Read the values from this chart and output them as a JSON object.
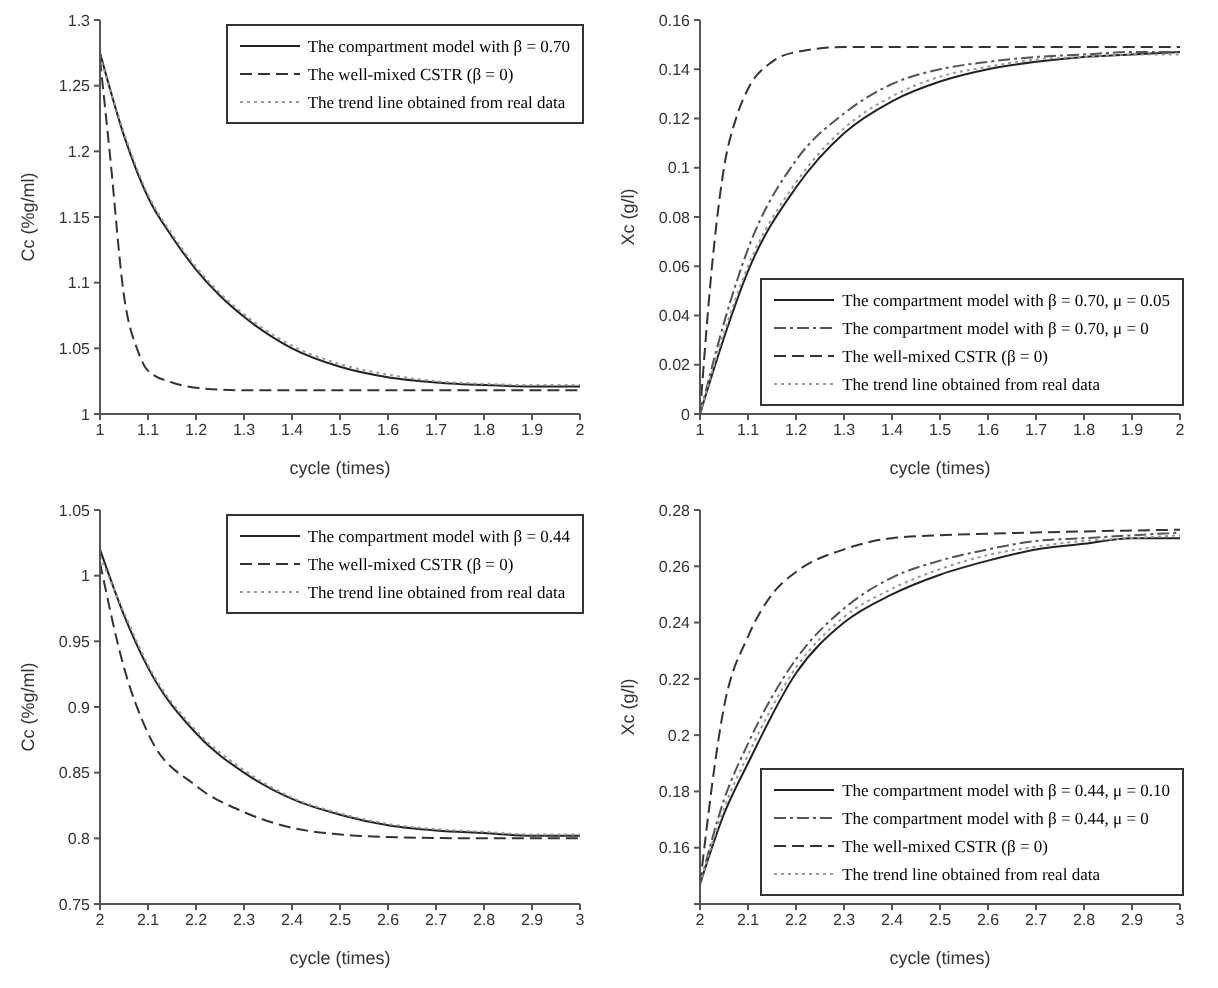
{
  "chart_data": [
    {
      "type": "line",
      "xlabel": "cycle (times)",
      "ylabel": "Cc (%g/ml)",
      "xlim": [
        1,
        2
      ],
      "ylim": [
        1,
        1.3
      ],
      "xticks": [
        1,
        1.1,
        1.2,
        1.3,
        1.4,
        1.5,
        1.6,
        1.7,
        1.8,
        1.9,
        2
      ],
      "yticks": [
        1,
        1.05,
        1.1,
        1.15,
        1.2,
        1.25,
        1.3
      ],
      "legend": "top right",
      "series": [
        {
          "name": "The compartment model with β = 0.70",
          "color": "#222222",
          "line_style": "solid",
          "x": [
            1,
            1.05,
            1.1,
            1.15,
            1.2,
            1.25,
            1.3,
            1.4,
            1.5,
            1.6,
            1.7,
            1.8,
            1.9,
            2
          ],
          "values": [
            1.275,
            1.212,
            1.165,
            1.135,
            1.11,
            1.09,
            1.074,
            1.05,
            1.036,
            1.028,
            1.024,
            1.022,
            1.021,
            1.021
          ]
        },
        {
          "name": "The well-mixed CSTR (β = 0)",
          "color": "#333333",
          "line_style": "dashed",
          "x": [
            1,
            1.02,
            1.05,
            1.08,
            1.1,
            1.15,
            1.2,
            1.3,
            1.5,
            2
          ],
          "values": [
            1.27,
            1.2,
            1.09,
            1.047,
            1.033,
            1.024,
            1.02,
            1.018,
            1.018,
            1.018
          ]
        },
        {
          "name": "The trend line obtained from real data",
          "color": "#999999",
          "line_style": "dotted",
          "x": [
            1,
            1.05,
            1.1,
            1.15,
            1.2,
            1.25,
            1.3,
            1.4,
            1.5,
            1.6,
            1.7,
            1.8,
            1.9,
            2
          ],
          "values": [
            1.273,
            1.214,
            1.167,
            1.137,
            1.112,
            1.092,
            1.076,
            1.052,
            1.038,
            1.03,
            1.025,
            1.023,
            1.022,
            1.022
          ]
        }
      ]
    },
    {
      "type": "line",
      "xlabel": "cycle (times)",
      "ylabel": "Xc (g/l)",
      "xlim": [
        1,
        2
      ],
      "ylim": [
        0,
        0.16
      ],
      "xticks": [
        1,
        1.1,
        1.2,
        1.3,
        1.4,
        1.5,
        1.6,
        1.7,
        1.8,
        1.9,
        2
      ],
      "yticks": [
        0,
        0.02,
        0.04,
        0.06,
        0.08,
        0.1,
        0.12,
        0.14,
        0.16
      ],
      "legend": "bottom right",
      "series": [
        {
          "name": "The compartment model with β = 0.70, μ = 0.05",
          "color": "#222222",
          "line_style": "solid",
          "x": [
            1,
            1.05,
            1.1,
            1.2,
            1.3,
            1.4,
            1.5,
            1.6,
            1.7,
            1.8,
            1.9,
            2
          ],
          "values": [
            0,
            0.031,
            0.058,
            0.092,
            0.114,
            0.127,
            0.135,
            0.14,
            0.143,
            0.145,
            0.146,
            0.147
          ]
        },
        {
          "name": "The compartment model with β = 0.70, μ = 0",
          "color": "#555555",
          "line_style": "dashdot",
          "x": [
            1,
            1.05,
            1.1,
            1.2,
            1.3,
            1.4,
            1.5,
            1.6,
            1.7,
            1.8,
            1.9,
            2
          ],
          "values": [
            0,
            0.037,
            0.067,
            0.103,
            0.122,
            0.134,
            0.14,
            0.143,
            0.145,
            0.146,
            0.147,
            0.147
          ]
        },
        {
          "name": "The well-mixed CSTR (β = 0)",
          "color": "#333333",
          "line_style": "dashed",
          "x": [
            1,
            1.025,
            1.05,
            1.075,
            1.1,
            1.15,
            1.2,
            1.3,
            1.5,
            2
          ],
          "values": [
            0,
            0.06,
            0.1,
            0.12,
            0.132,
            0.143,
            0.147,
            0.149,
            0.149,
            0.149
          ]
        },
        {
          "name": "The trend line obtained from real data",
          "color": "#999999",
          "line_style": "dotted",
          "x": [
            1,
            1.05,
            1.1,
            1.2,
            1.3,
            1.4,
            1.5,
            1.6,
            1.7,
            1.8,
            1.9,
            2
          ],
          "values": [
            0,
            0.033,
            0.06,
            0.094,
            0.116,
            0.129,
            0.137,
            0.141,
            0.144,
            0.145,
            0.146,
            0.146
          ]
        }
      ]
    },
    {
      "type": "line",
      "xlabel": "cycle (times)",
      "ylabel": "Cc (%g/ml)",
      "xlim": [
        2,
        3
      ],
      "ylim": [
        0.75,
        1.05
      ],
      "xticks": [
        2,
        2.1,
        2.2,
        2.3,
        2.4,
        2.5,
        2.6,
        2.7,
        2.8,
        2.9,
        3
      ],
      "yticks": [
        0.75,
        0.8,
        0.85,
        0.9,
        0.95,
        1,
        1.05
      ],
      "legend": "top right",
      "series": [
        {
          "name": "The compartment model with β = 0.44",
          "color": "#222222",
          "line_style": "solid",
          "x": [
            2,
            2.05,
            2.1,
            2.2,
            2.3,
            2.4,
            2.5,
            2.6,
            2.7,
            2.8,
            2.9,
            3
          ],
          "values": [
            1.02,
            0.97,
            0.93,
            0.88,
            0.85,
            0.83,
            0.818,
            0.81,
            0.806,
            0.804,
            0.802,
            0.802
          ]
        },
        {
          "name": "The well-mixed CSTR (β = 0)",
          "color": "#333333",
          "line_style": "dashed",
          "x": [
            2,
            2.05,
            2.1,
            2.2,
            2.3,
            2.4,
            2.5,
            2.6,
            2.8,
            3
          ],
          "values": [
            1.01,
            0.93,
            0.88,
            0.84,
            0.82,
            0.808,
            0.803,
            0.801,
            0.8,
            0.8
          ]
        },
        {
          "name": "The trend line obtained from real data",
          "color": "#999999",
          "line_style": "dotted",
          "x": [
            2,
            2.05,
            2.1,
            2.2,
            2.3,
            2.4,
            2.5,
            2.6,
            2.7,
            2.8,
            2.9,
            3
          ],
          "values": [
            1.015,
            0.972,
            0.932,
            0.882,
            0.852,
            0.831,
            0.819,
            0.811,
            0.807,
            0.805,
            0.803,
            0.803
          ]
        }
      ]
    },
    {
      "type": "line",
      "xlabel": "cycle (times)",
      "ylabel": "Xc (g/l)",
      "xlim": [
        2,
        3
      ],
      "ylim": [
        0.14,
        0.28
      ],
      "xticks": [
        2,
        2.1,
        2.2,
        2.3,
        2.4,
        2.5,
        2.6,
        2.7,
        2.8,
        2.9,
        3
      ],
      "yticks": [
        {
          "value": 0.14,
          "label": null
        },
        0.16,
        0.18,
        0.2,
        0.22,
        0.24,
        0.26,
        0.28
      ],
      "legend": "bottom right",
      "series": [
        {
          "name": "The compartment model with β = 0.44, μ = 0.10",
          "color": "#222222",
          "line_style": "solid",
          "x": [
            2,
            2.05,
            2.1,
            2.2,
            2.3,
            2.4,
            2.5,
            2.6,
            2.7,
            2.8,
            2.9,
            3
          ],
          "values": [
            0.147,
            0.172,
            0.19,
            0.222,
            0.24,
            0.25,
            0.257,
            0.262,
            0.266,
            0.268,
            0.27,
            0.27
          ]
        },
        {
          "name": "The compartment model with β = 0.44, μ = 0",
          "color": "#555555",
          "line_style": "dashdot",
          "x": [
            2,
            2.05,
            2.1,
            2.2,
            2.3,
            2.4,
            2.5,
            2.6,
            2.7,
            2.8,
            2.9,
            3
          ],
          "values": [
            0.147,
            0.177,
            0.197,
            0.227,
            0.245,
            0.256,
            0.262,
            0.266,
            0.269,
            0.27,
            0.271,
            0.272
          ]
        },
        {
          "name": "The well-mixed CSTR (β = 0)",
          "color": "#333333",
          "line_style": "dashed",
          "x": [
            2,
            2.05,
            2.1,
            2.15,
            2.2,
            2.3,
            2.4,
            2.5,
            2.7,
            3
          ],
          "values": [
            0.147,
            0.21,
            0.235,
            0.25,
            0.258,
            0.266,
            0.27,
            0.271,
            0.272,
            0.273
          ]
        },
        {
          "name": "The trend line obtained from real data",
          "color": "#999999",
          "line_style": "dotted",
          "x": [
            2,
            2.05,
            2.1,
            2.2,
            2.3,
            2.4,
            2.5,
            2.6,
            2.7,
            2.8,
            2.9,
            3
          ],
          "values": [
            0.147,
            0.174,
            0.193,
            0.224,
            0.242,
            0.252,
            0.259,
            0.264,
            0.267,
            0.269,
            0.27,
            0.271
          ]
        }
      ]
    }
  ]
}
